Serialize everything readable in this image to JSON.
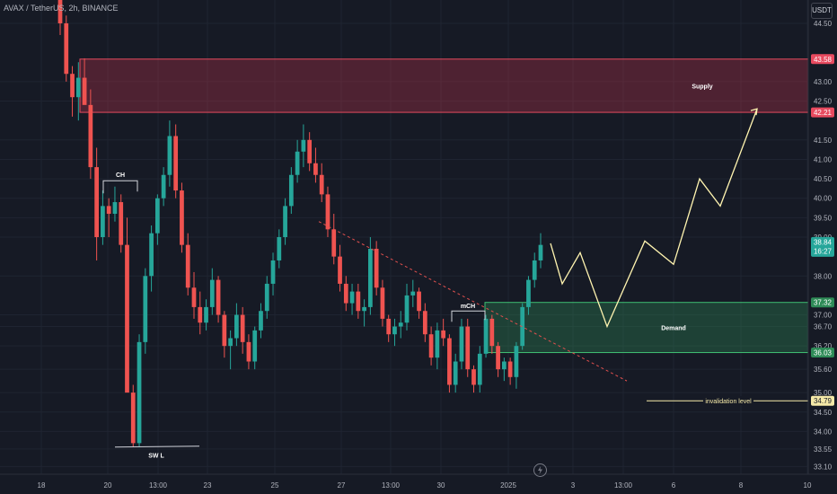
{
  "header": {
    "symbol_line": "AVAX / TetherUS, 2h, BINANCE",
    "currency_button": "USDT"
  },
  "colors": {
    "background": "#161a25",
    "candle_up": "#26a69a",
    "candle_down": "#ef5350",
    "supply_zone": "#b7334a",
    "demand_zone": "#2e8b57",
    "projection_path": "#fff4b0",
    "trendline": "#e0504e",
    "grid": "#1f2431"
  },
  "icons": {
    "replay": "lightning-bolt-icon"
  },
  "chart_data": {
    "type": "candlestick",
    "y_axis": {
      "range": [
        32.9,
        45.1
      ],
      "scale": "linear",
      "tick_labels": [
        "44.50",
        "43.00",
        "42.50",
        "41.50",
        "41.00",
        "40.50",
        "40.00",
        "39.50",
        "39.00",
        "38.00",
        "37.00",
        "36.70",
        "36.20",
        "35.60",
        "35.00",
        "34.50",
        "34.00",
        "33.55",
        "33.10"
      ],
      "tick_values": [
        44.5,
        43.0,
        42.5,
        41.5,
        41.0,
        40.5,
        40.0,
        39.5,
        39.0,
        38.0,
        37.0,
        36.7,
        36.2,
        35.6,
        35.0,
        34.5,
        34.0,
        33.55,
        33.1
      ]
    },
    "x_axis": {
      "tick_labels": [
        "18",
        "20",
        "13:00",
        "23",
        "25",
        "27",
        "13:00",
        "30",
        "2025",
        "3",
        "13:00",
        "6",
        "8",
        "10"
      ]
    },
    "price_badges": [
      {
        "label": "43.58",
        "value": 43.58,
        "color": "#e84a5f"
      },
      {
        "label": "42.21",
        "value": 42.21,
        "color": "#e84a5f"
      },
      {
        "label": "38.84",
        "sub": "16:27",
        "value": 38.84,
        "color": "#26a69a"
      },
      {
        "label": "37.32",
        "value": 37.32,
        "color": "#2e8b57"
      },
      {
        "label": "36.03",
        "value": 36.03,
        "color": "#2e8b57"
      },
      {
        "label": "34.79",
        "value": 34.79,
        "color": "#f5e9a8"
      }
    ],
    "zones": [
      {
        "name": "Supply",
        "top": 43.58,
        "bottom": 42.21
      },
      {
        "name": "Demand",
        "top": 37.32,
        "bottom": 36.03
      }
    ],
    "annotations": [
      {
        "text": "CH",
        "price": 40.45
      },
      {
        "text": "SW L",
        "price": 33.6
      },
      {
        "text": "mCH",
        "price": 37.1
      },
      {
        "text": "invalidation level",
        "price": 34.79
      }
    ],
    "candles_ohlc": [
      [
        45.1,
        45.1,
        44.2,
        44.5
      ],
      [
        44.5,
        44.7,
        43.0,
        43.2
      ],
      [
        43.2,
        43.4,
        42.1,
        42.6
      ],
      [
        42.6,
        43.5,
        42.0,
        43.1
      ],
      [
        43.1,
        43.6,
        42.5,
        42.4
      ],
      [
        42.4,
        42.8,
        40.5,
        40.8
      ],
      [
        40.8,
        41.3,
        38.4,
        39.0
      ],
      [
        39.0,
        40.2,
        38.8,
        39.8
      ],
      [
        39.8,
        40.0,
        39.0,
        39.6
      ],
      [
        39.6,
        40.3,
        39.4,
        39.9
      ],
      [
        39.9,
        40.1,
        38.6,
        38.8
      ],
      [
        38.8,
        39.5,
        37.7,
        35.0
      ],
      [
        35.0,
        35.2,
        33.6,
        33.7
      ],
      [
        33.7,
        36.5,
        33.6,
        36.3
      ],
      [
        36.3,
        38.2,
        36.0,
        38.0
      ],
      [
        38.0,
        39.3,
        37.6,
        39.1
      ],
      [
        39.1,
        40.1,
        38.8,
        40.0
      ],
      [
        40.0,
        40.8,
        39.8,
        40.6
      ],
      [
        40.6,
        42.0,
        40.3,
        41.6
      ],
      [
        41.6,
        41.9,
        40.0,
        40.2
      ],
      [
        40.2,
        40.4,
        38.6,
        38.8
      ],
      [
        38.8,
        39.1,
        37.5,
        37.7
      ],
      [
        37.7,
        38.1,
        36.9,
        37.2
      ],
      [
        37.2,
        37.6,
        36.5,
        36.8
      ],
      [
        36.8,
        37.4,
        36.6,
        37.2
      ],
      [
        37.2,
        38.2,
        37.0,
        37.9
      ],
      [
        37.9,
        38.0,
        36.8,
        37.0
      ],
      [
        37.0,
        37.1,
        35.9,
        36.2
      ],
      [
        36.2,
        36.6,
        35.6,
        36.4
      ],
      [
        36.4,
        37.3,
        36.2,
        37.0
      ],
      [
        37.0,
        37.2,
        36.0,
        36.3
      ],
      [
        36.3,
        36.5,
        35.6,
        35.8
      ],
      [
        35.8,
        36.7,
        35.6,
        36.6
      ],
      [
        36.6,
        37.3,
        36.4,
        37.1
      ],
      [
        37.1,
        38.0,
        36.9,
        37.8
      ],
      [
        37.8,
        38.6,
        37.5,
        38.4
      ],
      [
        38.4,
        39.2,
        38.2,
        39.0
      ],
      [
        39.0,
        40.0,
        38.8,
        39.8
      ],
      [
        39.8,
        40.8,
        39.6,
        40.6
      ],
      [
        40.6,
        41.5,
        40.4,
        41.2
      ],
      [
        41.2,
        41.9,
        40.8,
        41.5
      ],
      [
        41.5,
        41.7,
        40.7,
        40.9
      ],
      [
        40.9,
        41.3,
        40.4,
        40.6
      ],
      [
        40.6,
        40.9,
        39.9,
        40.1
      ],
      [
        40.1,
        40.3,
        39.0,
        39.2
      ],
      [
        39.2,
        39.6,
        38.3,
        38.5
      ],
      [
        38.5,
        38.8,
        37.6,
        37.8
      ],
      [
        37.8,
        38.0,
        37.1,
        37.3
      ],
      [
        37.3,
        37.8,
        37.0,
        37.6
      ],
      [
        37.6,
        37.8,
        36.9,
        37.1
      ],
      [
        37.1,
        37.4,
        36.7,
        37.2
      ],
      [
        37.2,
        39.0,
        37.0,
        38.7
      ],
      [
        38.7,
        38.9,
        37.5,
        37.7
      ],
      [
        37.7,
        37.9,
        36.7,
        36.9
      ],
      [
        36.9,
        37.0,
        36.3,
        36.5
      ],
      [
        36.5,
        36.9,
        36.2,
        36.7
      ],
      [
        36.7,
        37.1,
        36.4,
        36.8
      ],
      [
        36.8,
        37.8,
        36.6,
        37.5
      ],
      [
        37.5,
        37.9,
        37.2,
        37.6
      ],
      [
        37.6,
        37.7,
        36.9,
        37.1
      ],
      [
        37.1,
        37.3,
        36.3,
        36.5
      ],
      [
        36.5,
        36.7,
        35.7,
        35.9
      ],
      [
        35.9,
        36.8,
        35.6,
        36.6
      ],
      [
        36.6,
        36.9,
        36.2,
        36.4
      ],
      [
        36.4,
        36.5,
        35.0,
        35.2
      ],
      [
        35.2,
        36.0,
        35.0,
        35.8
      ],
      [
        35.8,
        36.9,
        35.6,
        36.7
      ],
      [
        36.7,
        36.9,
        35.4,
        35.6
      ],
      [
        35.6,
        35.7,
        35.0,
        35.2
      ],
      [
        35.2,
        36.2,
        35.0,
        36.0
      ],
      [
        36.0,
        37.0,
        35.9,
        36.9
      ],
      [
        36.9,
        37.0,
        36.0,
        36.2
      ],
      [
        36.2,
        36.3,
        35.4,
        35.6
      ],
      [
        35.6,
        35.9,
        35.3,
        35.8
      ],
      [
        35.8,
        35.9,
        35.2,
        35.4
      ],
      [
        35.4,
        36.3,
        35.1,
        36.2
      ],
      [
        36.2,
        37.3,
        36.1,
        37.2
      ],
      [
        37.2,
        38.0,
        37.0,
        37.9
      ],
      [
        37.9,
        38.6,
        37.7,
        38.4
      ],
      [
        38.4,
        39.1,
        38.2,
        38.8
      ]
    ],
    "trendline": [
      [
        40.0,
        39.4
      ],
      [
        45.0,
        35.3
      ]
    ],
    "projection_path_prices": [
      38.84,
      37.8,
      38.6,
      36.7,
      38.9,
      38.3,
      40.5,
      39.8,
      42.3
    ]
  }
}
